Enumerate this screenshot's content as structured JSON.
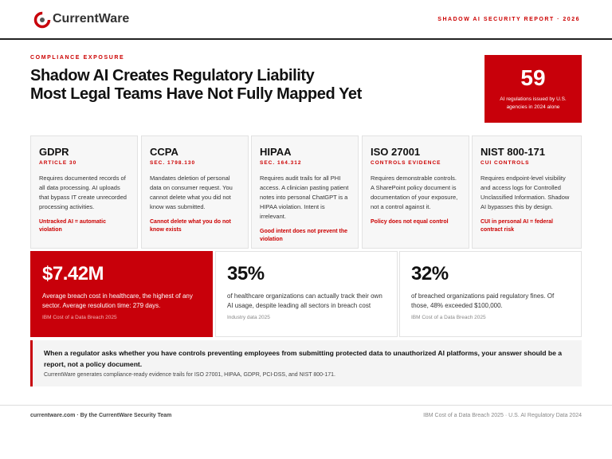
{
  "header": {
    "brand": "CurrentWare",
    "report": "SHADOW AI SECURITY REPORT · 2026"
  },
  "hero": {
    "eyebrow": "COMPLIANCE EXPOSURE",
    "title": [
      "Shadow AI Creates Regulatory Liability",
      "Most Legal Teams Have Not Fully Mapped Yet"
    ],
    "stat": {
      "value": "59",
      "caption": "AI regulations issued by U.S. agencies in 2024 alone"
    }
  },
  "cards": [
    {
      "name": "GDPR",
      "ref": "ARTICLE 30",
      "body": "Requires documented records of all data processing. AI uploads that bypass IT create unrecorded processing activities.",
      "risk": "Untracked AI = automatic violation"
    },
    {
      "name": "CCPA",
      "ref": "SEC. 1798.130",
      "body": "Mandates deletion of personal data on consumer request. You cannot delete what you did not know was submitted.",
      "risk": "Cannot delete what you do not know exists"
    },
    {
      "name": "HIPAA",
      "ref": "SEC. 164.312",
      "body": "Requires audit trails for all PHI access. A clinician pasting patient notes into personal ChatGPT is a HIPAA violation. Intent is irrelevant.",
      "risk": "Good intent does not prevent the violation"
    },
    {
      "name": "ISO 27001",
      "ref": "CONTROLS EVIDENCE",
      "body": "Requires demonstrable controls. A SharePoint policy document is documentation of your exposure, not a control against it.",
      "risk": "Policy does not equal control"
    },
    {
      "name": "NIST 800-171",
      "ref": "CUI CONTROLS",
      "body": "Requires endpoint-level visibility and access logs for Controlled Unclassified Information. Shadow AI bypasses this by design.",
      "risk": "CUI in personal AI = federal contract risk"
    }
  ],
  "stats": [
    {
      "value": "$7.42M",
      "text": "Average breach cost in healthcare, the highest of any sector. Average resolution time: 279 days.",
      "source": "IBM Cost of a Data Breach 2025"
    },
    {
      "value": "35%",
      "text": "of healthcare organizations can actually track their own AI usage, despite leading all sectors in breach cost",
      "source": "Industry data 2025"
    },
    {
      "value": "32%",
      "text": "of breached organizations paid regulatory fines. Of those, 48% exceeded $100,000.",
      "source": "IBM Cost of a Data Breach 2025"
    }
  ],
  "callout": {
    "headline": "When a regulator asks whether you have controls preventing employees from submitting protected data to unauthorized AI platforms, your answer should be a report, not a policy document.",
    "note": "CurrentWare generates compliance-ready evidence trails for ISO 27001, HIPAA, GDPR, PCI-DSS, and NIST 800-171."
  },
  "footer": {
    "left": "currentware.com · By the CurrentWare Security Team",
    "right": "IBM Cost of a Data Breach 2025 · U.S. AI Regulatory Data 2024"
  }
}
